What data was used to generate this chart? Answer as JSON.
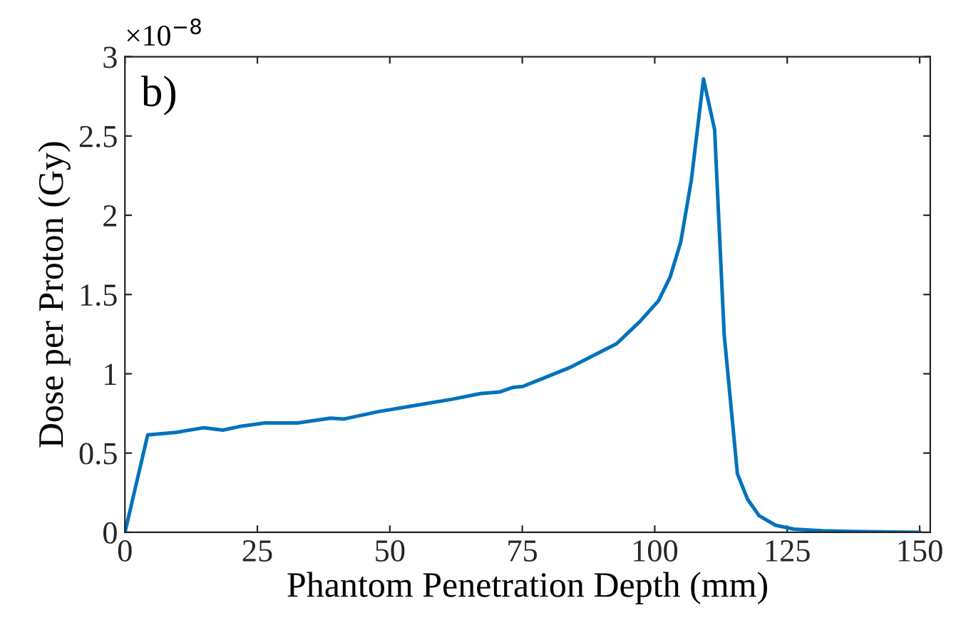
{
  "chart_data": {
    "type": "line",
    "xlabel": "Phantom Penetration Depth (mm)",
    "ylabel": "Dose per Proton (Gy)",
    "annotations": [
      "b)",
      "×10$^{−8}$"
    ],
    "x": [
      0,
      4.3,
      9.6,
      14.9,
      18.5,
      22,
      26.4,
      32.6,
      38.8,
      41.4,
      47.6,
      54.7,
      61.8,
      67.1,
      70.7,
      73.3,
      75.1,
      84,
      92.8,
      97.2,
      100.7,
      102.9,
      104.9,
      106.9,
      109.2,
      111.3,
      113.1,
      115.6,
      117.5,
      119.7,
      122.8,
      126.3,
      131.6,
      137,
      150
    ],
    "series": [
      {
        "color": "#0072bd",
        "values": [
          0,
          0.615,
          0.63,
          0.66,
          0.645,
          0.67,
          0.69,
          0.69,
          0.72,
          0.715,
          0.76,
          0.8,
          0.84,
          0.875,
          0.885,
          0.915,
          0.92,
          1.04,
          1.19,
          1.33,
          1.46,
          1.61,
          1.83,
          2.22,
          2.86,
          2.54,
          1.25,
          0.37,
          0.21,
          0.105,
          0.045,
          0.02,
          0.01,
          0.005,
          0
        ]
      }
    ],
    "xlim": [
      0,
      152
    ],
    "ylim": [
      0,
      3
    ],
    "xticks": [
      0,
      25,
      50,
      75,
      100,
      125,
      150
    ],
    "yticks": [
      0,
      0.5,
      1,
      1.5,
      2,
      2.5,
      3
    ],
    "grid": false,
    "legend": false,
    "marker": "none",
    "line_style": "solid"
  }
}
